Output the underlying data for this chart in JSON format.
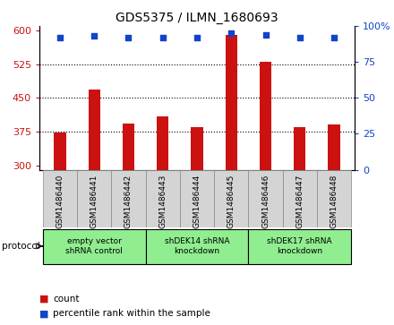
{
  "title": "GDS5375 / ILMN_1680693",
  "samples": [
    "GSM1486440",
    "GSM1486441",
    "GSM1486442",
    "GSM1486443",
    "GSM1486444",
    "GSM1486445",
    "GSM1486446",
    "GSM1486447",
    "GSM1486448"
  ],
  "counts": [
    372,
    468,
    392,
    408,
    385,
    590,
    530,
    385,
    390
  ],
  "percentiles": [
    92,
    93,
    92,
    92,
    92,
    95,
    94,
    92,
    92
  ],
  "ylim_left": [
    290,
    610
  ],
  "ylim_right": [
    0,
    100
  ],
  "yticks_left": [
    300,
    375,
    450,
    525,
    600
  ],
  "yticks_right": [
    0,
    25,
    50,
    75,
    100
  ],
  "bar_color": "#cc1111",
  "dot_color": "#1144cc",
  "bar_width": 0.35,
  "groups": [
    {
      "label": "empty vector\nshRNA control",
      "start": 0,
      "end": 2
    },
    {
      "label": "shDEK14 shRNA\nknockdown",
      "start": 3,
      "end": 5
    },
    {
      "label": "shDEK17 shRNA\nknockdown",
      "start": 6,
      "end": 8
    }
  ],
  "protocol_label": "protocol",
  "legend_count_label": "count",
  "legend_pct_label": "percentile rank within the sample",
  "tick_bg_color": "#d4d4d4",
  "group_bg_color": "#90ee90",
  "plot_bg_color": "#ffffff",
  "title_fontsize": 10,
  "tick_label_fontsize": 6.5,
  "legend_fontsize": 7.5,
  "protocol_fontsize": 7.5
}
